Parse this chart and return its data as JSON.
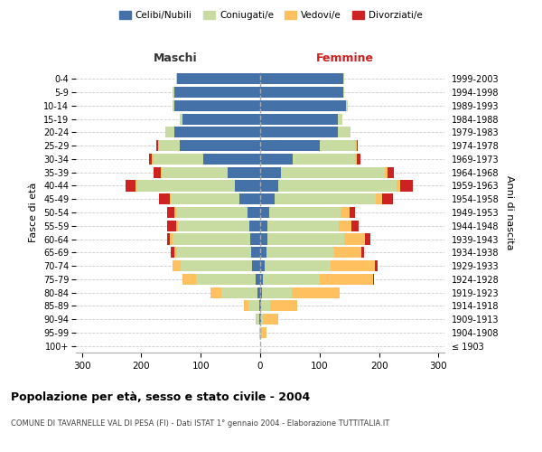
{
  "age_groups": [
    "100+",
    "95-99",
    "90-94",
    "85-89",
    "80-84",
    "75-79",
    "70-74",
    "65-69",
    "60-64",
    "55-59",
    "50-54",
    "45-49",
    "40-44",
    "35-39",
    "30-34",
    "25-29",
    "20-24",
    "15-19",
    "10-14",
    "5-9",
    "0-4"
  ],
  "birth_years": [
    "≤ 1903",
    "1904-1908",
    "1909-1913",
    "1914-1918",
    "1919-1923",
    "1924-1928",
    "1929-1933",
    "1934-1938",
    "1939-1943",
    "1944-1948",
    "1949-1953",
    "1954-1958",
    "1959-1963",
    "1964-1968",
    "1969-1973",
    "1974-1978",
    "1979-1983",
    "1984-1988",
    "1989-1993",
    "1994-1998",
    "1999-2003"
  ],
  "male": {
    "celibi": [
      0,
      0,
      1,
      2,
      5,
      8,
      13,
      15,
      17,
      18,
      22,
      35,
      42,
      55,
      95,
      135,
      145,
      130,
      145,
      145,
      140
    ],
    "coniugati": [
      0,
      2,
      5,
      18,
      60,
      100,
      120,
      125,
      130,
      120,
      120,
      115,
      165,
      110,
      85,
      35,
      15,
      5,
      3,
      2,
      1
    ],
    "vedovi": [
      0,
      0,
      2,
      8,
      18,
      22,
      15,
      5,
      5,
      3,
      3,
      2,
      2,
      2,
      2,
      2,
      0,
      0,
      0,
      0,
      0
    ],
    "divorziati": [
      0,
      0,
      0,
      0,
      0,
      0,
      0,
      5,
      5,
      15,
      12,
      18,
      18,
      12,
      5,
      2,
      0,
      0,
      0,
      0,
      0
    ]
  },
  "female": {
    "nubili": [
      0,
      0,
      1,
      2,
      3,
      5,
      8,
      10,
      12,
      12,
      15,
      25,
      30,
      35,
      55,
      100,
      130,
      130,
      145,
      140,
      140
    ],
    "coniugate": [
      0,
      2,
      4,
      15,
      50,
      95,
      110,
      115,
      130,
      120,
      120,
      170,
      200,
      175,
      105,
      60,
      22,
      8,
      3,
      1,
      1
    ],
    "vedove": [
      0,
      8,
      25,
      45,
      80,
      90,
      75,
      45,
      35,
      22,
      15,
      10,
      5,
      5,
      3,
      2,
      0,
      0,
      0,
      0,
      0
    ],
    "divorziate": [
      0,
      0,
      0,
      0,
      0,
      2,
      5,
      5,
      8,
      12,
      10,
      18,
      22,
      10,
      5,
      2,
      0,
      0,
      0,
      0,
      0
    ]
  },
  "colors": {
    "celibi_nubili": "#4472a8",
    "coniugati_e": "#c8dba0",
    "vedovi_e": "#ffc060",
    "divorziati_e": "#cc2222"
  },
  "xlim": 310,
  "title": "Popolazione per età, sesso e stato civile - 2004",
  "subtitle": "COMUNE DI TAVARNELLE VAL DI PESA (FI) - Dati ISTAT 1° gennaio 2004 - Elaborazione TUTTITALIA.IT",
  "ylabel_left": "Fasce di età",
  "ylabel_right": "Anni di nascita",
  "xlabel_maschi": "Maschi",
  "xlabel_femmine": "Femmine",
  "legend_labels": [
    "Celibi/Nubili",
    "Coniugati/e",
    "Vedovi/e",
    "Divorziati/e"
  ],
  "background_color": "#ffffff",
  "grid_color": "#cccccc"
}
